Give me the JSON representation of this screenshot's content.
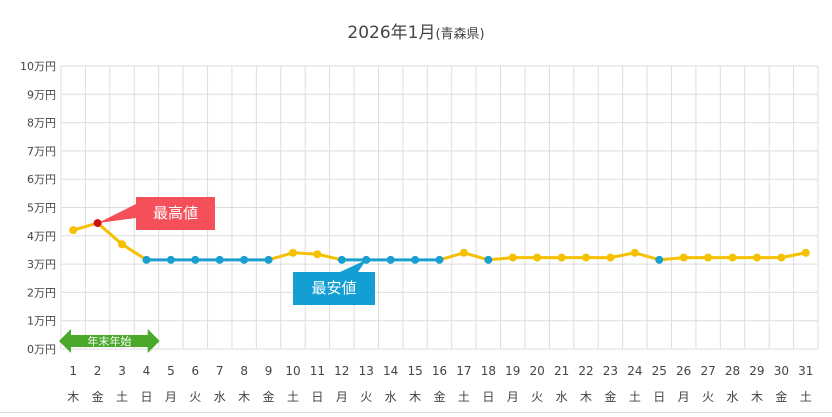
{
  "title": {
    "main": "2026年1月",
    "sub": "(青森県)"
  },
  "chart_data": {
    "type": "line",
    "title": "2026年1月(青森県)",
    "ylabel": "",
    "xlabel": "",
    "ylim": [
      0,
      10
    ],
    "yticks": [
      "0万円",
      "1万円",
      "2万円",
      "3万円",
      "4万円",
      "5万円",
      "6万円",
      "7万円",
      "8万円",
      "9万円",
      "10万円"
    ],
    "x": [
      1,
      2,
      3,
      4,
      5,
      6,
      7,
      8,
      9,
      10,
      11,
      12,
      13,
      14,
      15,
      16,
      17,
      18,
      19,
      20,
      21,
      22,
      23,
      24,
      25,
      26,
      27,
      28,
      29,
      30,
      31
    ],
    "weekdays": [
      "木",
      "金",
      "土",
      "日",
      "月",
      "火",
      "水",
      "木",
      "金",
      "土",
      "日",
      "月",
      "火",
      "水",
      "木",
      "金",
      "土",
      "日",
      "月",
      "火",
      "水",
      "木",
      "金",
      "土",
      "日",
      "月",
      "火",
      "水",
      "木",
      "金",
      "土"
    ],
    "values": [
      4.2,
      4.45,
      3.7,
      3.15,
      3.15,
      3.15,
      3.15,
      3.15,
      3.15,
      3.4,
      3.35,
      3.15,
      3.15,
      3.15,
      3.15,
      3.15,
      3.4,
      3.15,
      3.23,
      3.23,
      3.23,
      3.23,
      3.23,
      3.4,
      3.15,
      3.23,
      3.23,
      3.23,
      3.23,
      3.23,
      3.4
    ],
    "unit": "万円",
    "grid": true,
    "annotations": {
      "max_label": "最高値",
      "min_label": "最安値",
      "holiday_label": "年末年始",
      "holiday_range": [
        1,
        4
      ]
    },
    "colors": {
      "line": "#f5c000",
      "min": "#1a9fcf",
      "max": "#cc1111",
      "max_box": "#f5505a",
      "min_box": "#139fd3",
      "holiday": "#4aa82a"
    }
  }
}
